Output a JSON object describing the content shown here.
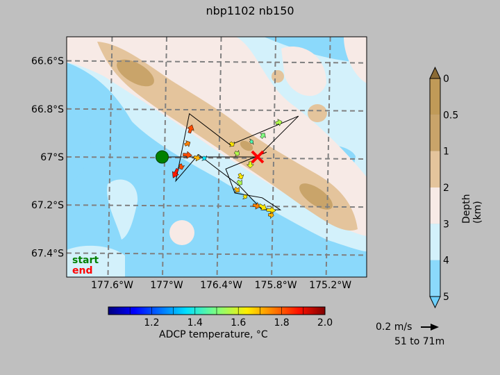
{
  "title": "nbp1102 nb150",
  "chart_data": {
    "type": "map-vector",
    "title": "nbp1102 nb150",
    "lon_range": [
      -178.1,
      -174.8
    ],
    "lat_range": [
      -67.5,
      -66.5
    ],
    "xticks": [
      {
        "value": -177.6,
        "label": "177.6°W"
      },
      {
        "value": -177.0,
        "label": "177°W"
      },
      {
        "value": -176.4,
        "label": "176.4°W"
      },
      {
        "value": -175.8,
        "label": "175.8°W"
      },
      {
        "value": -175.2,
        "label": "175.2°W"
      }
    ],
    "yticks": [
      {
        "value": -66.6,
        "label": "66.6°S"
      },
      {
        "value": -66.8,
        "label": "66.8°S"
      },
      {
        "value": -67.0,
        "label": "67°S"
      },
      {
        "value": -67.2,
        "label": "67.2°S"
      },
      {
        "value": -67.4,
        "label": "67.4°S"
      }
    ],
    "depth_colorbar": {
      "label": "Depth (km)",
      "ticks": [
        "0",
        "0.5",
        "1",
        "2",
        "3",
        "4",
        "5"
      ],
      "colors": [
        "#c09a58",
        "#c9a46a",
        "#e4c49c",
        "#f7eae6",
        "#d3f1fb",
        "#8bd9fb"
      ]
    },
    "temperature_colorbar": {
      "label": "ADCP temperature, °C",
      "ticks": [
        "1.2",
        "1.4",
        "1.6",
        "1.8",
        "2.0"
      ],
      "range": [
        1.0,
        2.0
      ]
    },
    "scale_arrow": {
      "speed_label": "0.2 m/s",
      "depth_label": "51 to 71m"
    },
    "legend": {
      "start": "start",
      "end": "end",
      "start_color": "#008000",
      "end_color": "#ff0000"
    },
    "start": {
      "lon": -177.05,
      "lat": -67.0
    },
    "end": {
      "lon": -176.0,
      "lat": -67.0
    },
    "track": [
      [
        -177.05,
        -67.0
      ],
      [
        -176.3,
        -67.0
      ],
      [
        -176.0,
        -67.0
      ],
      [
        -175.55,
        -66.83
      ],
      [
        -176.3,
        -66.95
      ],
      [
        -176.75,
        -66.82
      ],
      [
        -176.9,
        -67.1
      ],
      [
        -176.65,
        -66.99
      ],
      [
        -176.2,
        -67.12
      ],
      [
        -175.95,
        -67.22
      ],
      [
        -175.75,
        -67.22
      ],
      [
        -175.95,
        -67.17
      ],
      [
        -176.25,
        -67.15
      ],
      [
        -176.35,
        -67.05
      ],
      [
        -175.9,
        -66.98
      ]
    ],
    "vectors": [
      {
        "lon": -176.75,
        "lat": -66.9,
        "u": 0.03,
        "v": 0.09,
        "temp": 1.8
      },
      {
        "lon": -176.8,
        "lat": -66.95,
        "u": 0.06,
        "v": 0.03,
        "temp": 1.75
      },
      {
        "lon": -176.82,
        "lat": -66.99,
        "u": 0.1,
        "v": -0.01,
        "temp": 1.8
      },
      {
        "lon": -176.7,
        "lat": -67.0,
        "u": 0.07,
        "v": -0.02,
        "temp": 1.7
      },
      {
        "lon": -176.6,
        "lat": -67.0,
        "u": 0.03,
        "v": -0.03,
        "temp": 1.35
      },
      {
        "lon": -176.85,
        "lat": -67.03,
        "u": 0.02,
        "v": -0.06,
        "temp": 1.8
      },
      {
        "lon": -176.88,
        "lat": -67.05,
        "u": -0.05,
        "v": -0.1,
        "temp": 1.85
      },
      {
        "lon": -176.3,
        "lat": -66.94,
        "u": 0.04,
        "v": -0.04,
        "temp": 1.65
      },
      {
        "lon": -176.25,
        "lat": -66.98,
        "u": 0.05,
        "v": -0.03,
        "temp": 1.55
      },
      {
        "lon": -176.08,
        "lat": -66.94,
        "u": 0.03,
        "v": 0.02,
        "temp": 1.45
      },
      {
        "lon": -175.96,
        "lat": -66.92,
        "u": 0.04,
        "v": 0.05,
        "temp": 1.5
      },
      {
        "lon": -175.8,
        "lat": -66.86,
        "u": 0.07,
        "v": 0.02,
        "temp": 1.55
      },
      {
        "lon": -176.08,
        "lat": -67.02,
        "u": 0.0,
        "v": -0.07,
        "temp": 1.6
      },
      {
        "lon": -176.2,
        "lat": -67.07,
        "u": 0.03,
        "v": -0.06,
        "temp": 1.65
      },
      {
        "lon": -176.22,
        "lat": -67.1,
        "u": 0.05,
        "v": -0.04,
        "temp": 1.55
      },
      {
        "lon": -176.25,
        "lat": -67.13,
        "u": 0.05,
        "v": -0.04,
        "temp": 1.7
      },
      {
        "lon": -176.05,
        "lat": -67.2,
        "u": 0.08,
        "v": -0.02,
        "temp": 1.75
      },
      {
        "lon": -175.98,
        "lat": -67.2,
        "u": 0.08,
        "v": -0.05,
        "temp": 1.65
      },
      {
        "lon": -175.9,
        "lat": -67.22,
        "u": 0.1,
        "v": -0.01,
        "temp": 1.65
      },
      {
        "lon": -175.88,
        "lat": -67.24,
        "u": 0.06,
        "v": -0.01,
        "temp": 1.7
      },
      {
        "lon": -176.15,
        "lat": -67.16,
        "u": 0.03,
        "v": -0.03,
        "temp": 1.65
      }
    ]
  }
}
